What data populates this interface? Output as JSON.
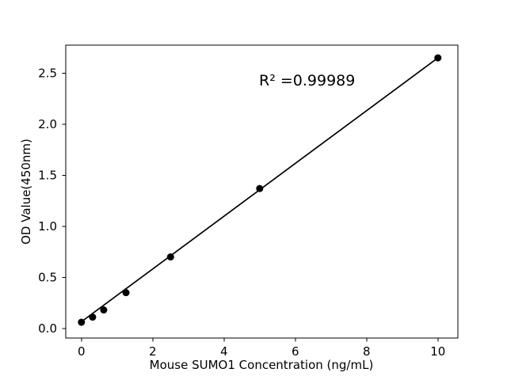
{
  "chart_data": {
    "type": "scatter",
    "title": "",
    "xlabel": "Mouse SUMO1 Concentration (ng/mL)",
    "ylabel": "OD Value(450nm)",
    "annotation": "R² =0.99989",
    "x": [
      0,
      0.313,
      0.625,
      1.25,
      2.5,
      5,
      10
    ],
    "y": [
      0.06,
      0.11,
      0.18,
      0.35,
      0.7,
      1.37,
      2.65
    ],
    "fit_line": {
      "x": [
        0,
        10
      ],
      "y": [
        0.065,
        2.65
      ]
    },
    "xtick_labels": [
      "0",
      "2",
      "4",
      "6",
      "8",
      "10"
    ],
    "xtick_values": [
      0,
      2,
      4,
      6,
      8,
      10
    ],
    "ytick_labels": [
      "0.0",
      "0.5",
      "1.0",
      "1.5",
      "2.0",
      "2.5"
    ],
    "ytick_values": [
      0,
      0.5,
      1.0,
      1.5,
      2.0,
      2.5
    ],
    "xlim": [
      -0.44,
      10.56
    ],
    "ylim": [
      -0.095,
      2.775
    ],
    "grid": false,
    "legend": null,
    "marker": "circle",
    "marker_color": "#000000",
    "line_color": "#000000",
    "axis_color": "#000000",
    "background_color": "#ffffff"
  }
}
